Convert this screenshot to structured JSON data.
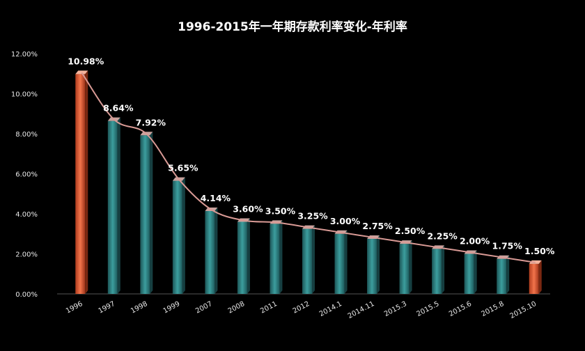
{
  "chart_data": {
    "type": "bar",
    "title": "1996-2015年一年期存款利率变化-年利率",
    "xlabel": "",
    "ylabel": "",
    "categories": [
      "1996",
      "1997",
      "1998",
      "1999",
      "2007",
      "2008",
      "2011",
      "2012",
      "2014.1",
      "2014.11",
      "2015.3",
      "2015.5",
      "2015.6",
      "2015.8",
      "2015.10"
    ],
    "values": [
      10.98,
      8.64,
      7.92,
      5.65,
      4.14,
      3.6,
      3.5,
      3.25,
      3.0,
      2.75,
      2.5,
      2.25,
      2.0,
      1.75,
      1.5
    ],
    "data_labels": [
      "10.98%",
      "8.64%",
      "7.92%",
      "5.65%",
      "4.14%",
      "3.60%",
      "3.50%",
      "3.25%",
      "3.00%",
      "2.75%",
      "2.50%",
      "2.25%",
      "2.00%",
      "1.75%",
      "1.50%"
    ],
    "y_ticks": [
      "0.00%",
      "2.00%",
      "4.00%",
      "6.00%",
      "8.00%",
      "10.00%",
      "12.00%"
    ],
    "ylim": [
      0,
      12
    ],
    "grid": false,
    "trendline": true,
    "colors": {
      "bar": "#3fa6a6",
      "bar_highlight": "#f0623a",
      "trendline": "#d99a95",
      "background": "#000000"
    }
  }
}
